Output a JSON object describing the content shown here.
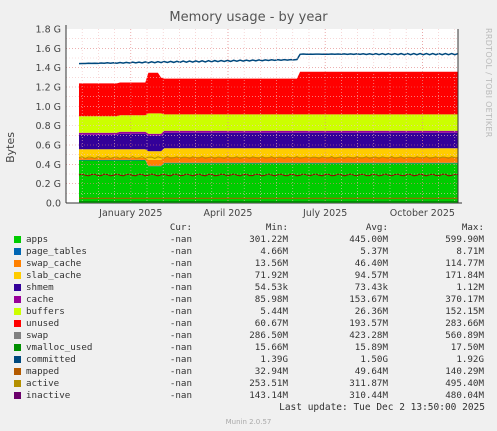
{
  "chart_data": {
    "type": "area",
    "title": "Memory usage - by year",
    "ylabel": "Bytes",
    "watermark": "RRDTOOL / TOBI OETIKER",
    "yticks": [
      "0.0",
      "0.2 G",
      "0.4 G",
      "0.6 G",
      "0.8 G",
      "1.0 G",
      "1.2 G",
      "1.4 G",
      "1.6 G",
      "1.8 G"
    ],
    "ylim": [
      0,
      1.8
    ],
    "xticks": [
      "January 2025",
      "April 2025",
      "July 2025",
      "October 2025"
    ],
    "xtick_positions_months": [
      2,
      5,
      8,
      11
    ],
    "x_range_months": [
      0,
      12.1
    ],
    "grid": true,
    "series": [
      {
        "name": "apps",
        "color": "#00cc00",
        "cur": "-nan",
        "min": "301.22M",
        "avg": "445.00M",
        "max": "599.90M"
      },
      {
        "name": "page_tables",
        "color": "#0066b3",
        "cur": "-nan",
        "min": "4.66M",
        "avg": "5.37M",
        "max": "8.71M"
      },
      {
        "name": "swap_cache",
        "color": "#ff8000",
        "cur": "-nan",
        "min": "13.56M",
        "avg": "46.40M",
        "max": "114.77M"
      },
      {
        "name": "slab_cache",
        "color": "#ffcc00",
        "cur": "-nan",
        "min": "71.92M",
        "avg": "94.57M",
        "max": "171.84M"
      },
      {
        "name": "shmem",
        "color": "#330099",
        "cur": "-nan",
        "min": "54.53k",
        "avg": "73.43k",
        "max": "1.12M"
      },
      {
        "name": "cache",
        "color": "#990099",
        "cur": "-nan",
        "min": "85.98M",
        "avg": "153.67M",
        "max": "370.17M"
      },
      {
        "name": "buffers",
        "color": "#ccff00",
        "cur": "-nan",
        "min": "5.44M",
        "avg": "26.36M",
        "max": "152.15M"
      },
      {
        "name": "unused",
        "color": "#ff0000",
        "cur": "-nan",
        "min": "60.67M",
        "avg": "193.57M",
        "max": "283.66M"
      },
      {
        "name": "swap",
        "color": "#808080",
        "cur": "-nan",
        "min": "286.50M",
        "avg": "423.28M",
        "max": "560.89M"
      },
      {
        "name": "vmalloc_used",
        "color": "#008f00",
        "cur": "-nan",
        "min": "15.66M",
        "avg": "15.89M",
        "max": "17.50M"
      },
      {
        "name": "committed",
        "color": "#00487d",
        "cur": "-nan",
        "min": "1.39G",
        "avg": "1.50G",
        "max": "1.92G"
      },
      {
        "name": "mapped",
        "color": "#b35a00",
        "cur": "-nan",
        "min": "32.94M",
        "avg": "49.64M",
        "max": "140.29M"
      },
      {
        "name": "active",
        "color": "#b38f00",
        "cur": "-nan",
        "min": "253.51M",
        "avg": "311.87M",
        "max": "495.40M"
      },
      {
        "name": "inactive",
        "color": "#6b006b",
        "cur": "-nan",
        "min": "143.14M",
        "avg": "310.44M",
        "max": "480.04M"
      }
    ]
  },
  "legend_headers": {
    "cur": "Cur:",
    "min": "Min:",
    "avg": "Avg:",
    "max": "Max:"
  },
  "last_update": "Last update: Tue Dec  2 13:50:00 2025",
  "munin_version": "Munin 2.0.57"
}
